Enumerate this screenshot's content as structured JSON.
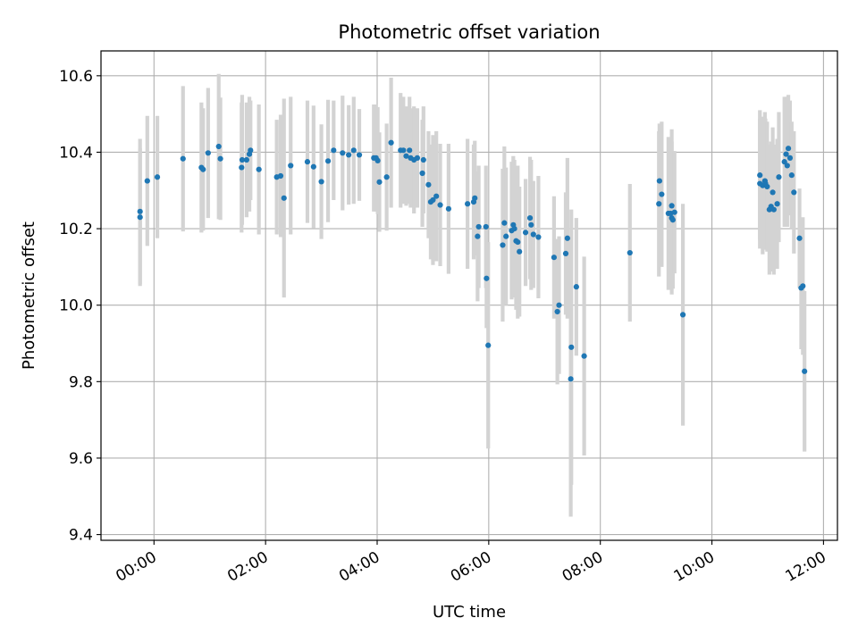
{
  "chart_data": {
    "type": "scatter",
    "title": "Photometric offset variation",
    "xlabel": "UTC time",
    "ylabel": "Photometric offset",
    "x_unit": "hours (UTC)",
    "xlim": [
      -0.95,
      12.25
    ],
    "ylim": [
      9.385,
      10.665
    ],
    "xticks": [
      {
        "value": 0,
        "label": "00:00"
      },
      {
        "value": 2,
        "label": "02:00"
      },
      {
        "value": 4,
        "label": "04:00"
      },
      {
        "value": 6,
        "label": "06:00"
      },
      {
        "value": 8,
        "label": "08:00"
      },
      {
        "value": 10,
        "label": "10:00"
      },
      {
        "value": 12,
        "label": "12:00"
      }
    ],
    "yticks": [
      {
        "value": 9.4,
        "label": "9.4"
      },
      {
        "value": 9.6,
        "label": "9.6"
      },
      {
        "value": 9.8,
        "label": "9.8"
      },
      {
        "value": 10.0,
        "label": "10.0"
      },
      {
        "value": 10.2,
        "label": "10.2"
      },
      {
        "value": 10.4,
        "label": "10.4"
      },
      {
        "value": 10.6,
        "label": "10.6"
      }
    ],
    "grid": true,
    "xtick_rotation": "30deg",
    "colors": {
      "marker": "#1f77b4",
      "errorbar": "#d3d3d3",
      "grid": "#b0b0b0"
    },
    "series": [
      {
        "points": [
          [
            -0.25,
            10.245,
            0.19
          ],
          [
            -0.25,
            10.23,
            0.18
          ],
          [
            -0.12,
            10.325,
            0.17
          ],
          [
            0.06,
            10.335,
            0.16
          ],
          [
            0.52,
            10.383,
            0.19
          ],
          [
            0.85,
            10.36,
            0.17
          ],
          [
            0.88,
            10.355,
            0.16
          ],
          [
            0.97,
            10.398,
            0.17
          ],
          [
            1.16,
            10.415,
            0.19
          ],
          [
            1.19,
            10.383,
            0.16
          ],
          [
            1.57,
            10.36,
            0.17
          ],
          [
            1.58,
            10.38,
            0.17
          ],
          [
            1.66,
            10.38,
            0.15
          ],
          [
            1.71,
            10.395,
            0.15
          ],
          [
            1.73,
            10.405,
            0.13
          ],
          [
            1.88,
            10.355,
            0.17
          ],
          [
            2.2,
            10.335,
            0.15
          ],
          [
            2.27,
            10.338,
            0.16
          ],
          [
            2.33,
            10.28,
            0.26
          ],
          [
            2.45,
            10.365,
            0.18
          ],
          [
            2.75,
            10.375,
            0.16
          ],
          [
            2.86,
            10.362,
            0.16
          ],
          [
            3.0,
            10.323,
            0.15
          ],
          [
            3.12,
            10.377,
            0.16
          ],
          [
            3.22,
            10.405,
            0.13
          ],
          [
            3.38,
            10.398,
            0.15
          ],
          [
            3.49,
            10.393,
            0.13
          ],
          [
            3.58,
            10.405,
            0.14
          ],
          [
            3.68,
            10.393,
            0.12
          ],
          [
            3.94,
            10.385,
            0.14
          ],
          [
            3.98,
            10.385,
            0.14
          ],
          [
            4.01,
            10.378,
            0.14
          ],
          [
            4.04,
            10.322,
            0.13
          ],
          [
            4.17,
            10.335,
            0.14
          ],
          [
            4.25,
            10.425,
            0.17
          ],
          [
            4.42,
            10.405,
            0.15
          ],
          [
            4.47,
            10.405,
            0.14
          ],
          [
            4.52,
            10.39,
            0.13
          ],
          [
            4.58,
            10.405,
            0.14
          ],
          [
            4.6,
            10.385,
            0.13
          ],
          [
            4.66,
            10.38,
            0.14
          ],
          [
            4.72,
            10.385,
            0.13
          ],
          [
            4.81,
            10.345,
            0.14
          ],
          [
            4.83,
            10.38,
            0.14
          ],
          [
            4.92,
            10.315,
            0.14
          ],
          [
            4.96,
            10.27,
            0.15
          ],
          [
            5.0,
            10.275,
            0.17
          ],
          [
            5.06,
            10.285,
            0.17
          ],
          [
            5.13,
            10.262,
            0.16
          ],
          [
            5.28,
            10.252,
            0.17
          ],
          [
            5.62,
            10.265,
            0.17
          ],
          [
            5.73,
            10.27,
            0.15
          ],
          [
            5.75,
            10.28,
            0.15
          ],
          [
            5.8,
            10.18,
            0.17
          ],
          [
            5.82,
            10.205,
            0.16
          ],
          [
            5.95,
            10.205,
            0.16
          ],
          [
            5.96,
            10.07,
            0.13
          ],
          [
            5.99,
            9.895,
            0.27
          ],
          [
            6.25,
            10.157,
            0.2
          ],
          [
            6.28,
            10.215,
            0.2
          ],
          [
            6.31,
            10.18,
            0.18
          ],
          [
            6.41,
            10.195,
            0.18
          ],
          [
            6.44,
            10.21,
            0.18
          ],
          [
            6.46,
            10.2,
            0.18
          ],
          [
            6.49,
            10.168,
            0.18
          ],
          [
            6.52,
            10.165,
            0.2
          ],
          [
            6.55,
            10.14,
            0.17
          ],
          [
            6.66,
            10.19,
            0.14
          ],
          [
            6.74,
            10.228,
            0.16
          ],
          [
            6.76,
            10.21,
            0.17
          ],
          [
            6.8,
            10.185,
            0.14
          ],
          [
            6.89,
            10.178,
            0.16
          ],
          [
            7.17,
            10.125,
            0.16
          ],
          [
            7.23,
            9.983,
            0.19
          ],
          [
            7.26,
            10.0,
            0.18
          ],
          [
            7.38,
            10.135,
            0.16
          ],
          [
            7.41,
            10.175,
            0.21
          ],
          [
            7.47,
            9.807,
            0.36
          ],
          [
            7.48,
            9.89,
            0.36
          ],
          [
            7.57,
            10.048,
            0.18
          ],
          [
            7.71,
            9.867,
            0.26
          ],
          [
            8.53,
            10.137,
            0.18
          ],
          [
            9.05,
            10.265,
            0.19
          ],
          [
            9.06,
            10.325,
            0.15
          ],
          [
            9.1,
            10.29,
            0.19
          ],
          [
            9.22,
            10.24,
            0.2
          ],
          [
            9.26,
            10.24,
            0.18
          ],
          [
            9.28,
            10.26,
            0.2
          ],
          [
            9.28,
            10.228,
            0.2
          ],
          [
            9.3,
            10.223,
            0.18
          ],
          [
            9.33,
            10.243,
            0.16
          ],
          [
            9.48,
            9.975,
            0.29
          ],
          [
            10.86,
            10.34,
            0.17
          ],
          [
            10.86,
            10.318,
            0.17
          ],
          [
            10.91,
            10.313,
            0.18
          ],
          [
            10.95,
            10.325,
            0.18
          ],
          [
            10.96,
            10.318,
            0.17
          ],
          [
            10.99,
            10.31,
            0.17
          ],
          [
            11.03,
            10.25,
            0.17
          ],
          [
            11.06,
            10.258,
            0.17
          ],
          [
            11.09,
            10.295,
            0.17
          ],
          [
            11.11,
            10.25,
            0.17
          ],
          [
            11.17,
            10.265,
            0.17
          ],
          [
            11.2,
            10.335,
            0.17
          ],
          [
            11.3,
            10.375,
            0.17
          ],
          [
            11.33,
            10.395,
            0.15
          ],
          [
            11.35,
            10.365,
            0.16
          ],
          [
            11.37,
            10.41,
            0.14
          ],
          [
            11.4,
            10.385,
            0.15
          ],
          [
            11.43,
            10.34,
            0.14
          ],
          [
            11.47,
            10.295,
            0.16
          ],
          [
            11.57,
            10.175,
            0.13
          ],
          [
            11.6,
            10.045,
            0.16
          ],
          [
            11.63,
            10.05,
            0.18
          ],
          [
            11.66,
            9.827,
            0.21
          ]
        ]
      }
    ]
  }
}
